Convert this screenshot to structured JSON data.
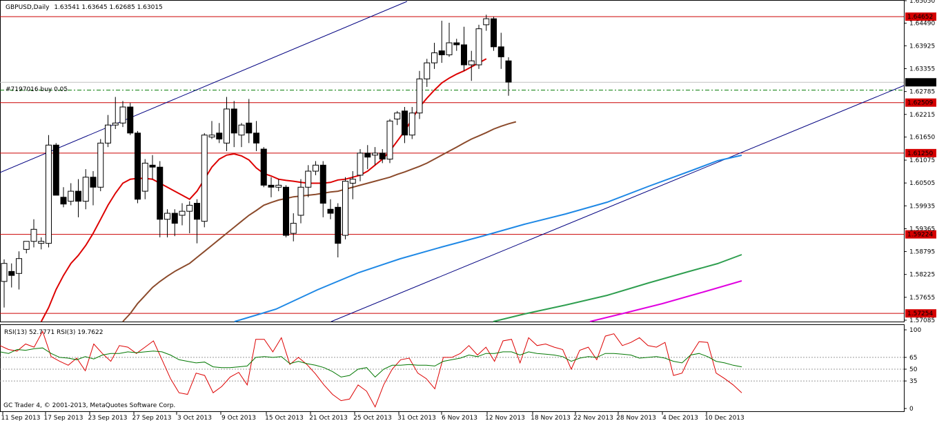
{
  "header": {
    "symbol": "GBPUSD,Daily",
    "ohlc": "1.63541 1.63645 1.62685 1.63015"
  },
  "order_label": "#7197016 buy 0.05",
  "footer": {
    "copyright": "GC Trader 4, © 2001-2013, MetaQuotes Software Corp."
  },
  "colors": {
    "bg": "#ffffff",
    "candle": "#000000",
    "ma_red": "#dd0000",
    "ma_brown": "#8b4a2b",
    "ma_blue": "#1e88e5",
    "ma_green": "#2e9e4f",
    "ma_magenta": "#e000e0",
    "hline": "#cc0000",
    "trend": "#000080",
    "rsi_fast": "#dd0000",
    "rsi_slow": "#007700"
  },
  "chart_data": [
    {
      "type": "candlestick",
      "title": "GBPUSD,Daily",
      "ylim": [
        1.5705,
        1.6505
      ],
      "price_ticks": [
        "1.65050",
        "1.64490",
        "1.63925",
        "1.63355",
        "1.62785",
        "1.62215",
        "1.61650",
        "1.61075",
        "1.60505",
        "1.59935",
        "1.59365",
        "1.58795",
        "1.58225",
        "1.57655",
        "1.57085"
      ],
      "x_labels": [
        "11 Sep 2013",
        "17 Sep 2013",
        "23 Sep 2013",
        "27 Sep 2013",
        "3 Oct 2013",
        "9 Oct 2013",
        "15 Oct 2013",
        "21 Oct 2013",
        "25 Oct 2013",
        "31 Oct 2013",
        "6 Nov 2013",
        "12 Nov 2013",
        "18 Nov 2013",
        "22 Nov 2013",
        "28 Nov 2013",
        "4 Dec 2013",
        "10 Dec 2013"
      ],
      "horizontal_levels": [
        {
          "label": "1.64652",
          "value": 1.64652
        },
        {
          "label": "1.62509",
          "value": 1.62509
        },
        {
          "label": "1.61250",
          "value": 1.6125
        },
        {
          "label": "1.59224",
          "value": 1.59224
        },
        {
          "label": "1.57254",
          "value": 1.57254
        }
      ],
      "current_price": {
        "label": "1.63015",
        "value": 1.63015
      },
      "order_level": {
        "value": 1.6282,
        "label": "#7197016 buy 0.05"
      },
      "candles": [
        {
          "o": 1.5805,
          "h": 1.586,
          "l": 1.574,
          "c": 1.585
        },
        {
          "o": 1.583,
          "h": 1.585,
          "l": 1.579,
          "c": 1.582
        },
        {
          "o": 1.5825,
          "h": 1.588,
          "l": 1.5785,
          "c": 1.5862
        },
        {
          "o": 1.5885,
          "h": 1.5905,
          "l": 1.5875,
          "c": 1.5905
        },
        {
          "o": 1.5905,
          "h": 1.596,
          "l": 1.589,
          "c": 1.5935
        },
        {
          "o": 1.59,
          "h": 1.5915,
          "l": 1.5885,
          "c": 1.5905
        },
        {
          "o": 1.59,
          "h": 1.617,
          "l": 1.589,
          "c": 1.6145
        },
        {
          "o": 1.6145,
          "h": 1.615,
          "l": 1.602,
          "c": 1.602
        },
        {
          "o": 1.6015,
          "h": 1.604,
          "l": 1.599,
          "c": 1.5998
        },
        {
          "o": 1.6005,
          "h": 1.605,
          "l": 1.5995,
          "c": 1.603
        },
        {
          "o": 1.603,
          "h": 1.606,
          "l": 1.5965,
          "c": 1.6005
        },
        {
          "o": 1.6005,
          "h": 1.6085,
          "l": 1.5985,
          "c": 1.6065
        },
        {
          "o": 1.6065,
          "h": 1.608,
          "l": 1.5995,
          "c": 1.604
        },
        {
          "o": 1.604,
          "h": 1.616,
          "l": 1.603,
          "c": 1.615
        },
        {
          "o": 1.615,
          "h": 1.622,
          "l": 1.614,
          "c": 1.6195
        },
        {
          "o": 1.6195,
          "h": 1.6265,
          "l": 1.6185,
          "c": 1.62
        },
        {
          "o": 1.62,
          "h": 1.6255,
          "l": 1.619,
          "c": 1.624
        },
        {
          "o": 1.624,
          "h": 1.625,
          "l": 1.617,
          "c": 1.6175
        },
        {
          "o": 1.6175,
          "h": 1.618,
          "l": 1.6,
          "c": 1.601
        },
        {
          "o": 1.603,
          "h": 1.611,
          "l": 1.601,
          "c": 1.61
        },
        {
          "o": 1.6095,
          "h": 1.612,
          "l": 1.606,
          "c": 1.609
        },
        {
          "o": 1.609,
          "h": 1.6105,
          "l": 1.5915,
          "c": 1.596
        },
        {
          "o": 1.596,
          "h": 1.5985,
          "l": 1.5915,
          "c": 1.5975
        },
        {
          "o": 1.5975,
          "h": 1.5985,
          "l": 1.5918,
          "c": 1.595
        },
        {
          "o": 1.597,
          "h": 1.6,
          "l": 1.5945,
          "c": 1.598
        },
        {
          "o": 1.598,
          "h": 1.6005,
          "l": 1.5925,
          "c": 1.5995
        },
        {
          "o": 1.6,
          "h": 1.601,
          "l": 1.59,
          "c": 1.596
        },
        {
          "o": 1.5955,
          "h": 1.6175,
          "l": 1.594,
          "c": 1.617
        },
        {
          "o": 1.6165,
          "h": 1.6205,
          "l": 1.616,
          "c": 1.617
        },
        {
          "o": 1.6175,
          "h": 1.62,
          "l": 1.615,
          "c": 1.616
        },
        {
          "o": 1.615,
          "h": 1.6265,
          "l": 1.613,
          "c": 1.6235
        },
        {
          "o": 1.6235,
          "h": 1.6255,
          "l": 1.614,
          "c": 1.6175
        },
        {
          "o": 1.617,
          "h": 1.62,
          "l": 1.614,
          "c": 1.6195
        },
        {
          "o": 1.62,
          "h": 1.626,
          "l": 1.615,
          "c": 1.6175
        },
        {
          "o": 1.6175,
          "h": 1.6205,
          "l": 1.613,
          "c": 1.615
        },
        {
          "o": 1.6135,
          "h": 1.614,
          "l": 1.604,
          "c": 1.6045
        },
        {
          "o": 1.6045,
          "h": 1.6065,
          "l": 1.6015,
          "c": 1.604
        },
        {
          "o": 1.604,
          "h": 1.606,
          "l": 1.603,
          "c": 1.6045
        },
        {
          "o": 1.604,
          "h": 1.6045,
          "l": 1.5915,
          "c": 1.592
        },
        {
          "o": 1.5925,
          "h": 1.5975,
          "l": 1.5905,
          "c": 1.595
        },
        {
          "o": 1.597,
          "h": 1.606,
          "l": 1.595,
          "c": 1.604
        },
        {
          "o": 1.604,
          "h": 1.6095,
          "l": 1.6015,
          "c": 1.608
        },
        {
          "o": 1.608,
          "h": 1.6105,
          "l": 1.607,
          "c": 1.6095
        },
        {
          "o": 1.6095,
          "h": 1.6105,
          "l": 1.5965,
          "c": 1.6
        },
        {
          "o": 1.5985,
          "h": 1.601,
          "l": 1.596,
          "c": 1.5975
        },
        {
          "o": 1.599,
          "h": 1.6,
          "l": 1.5865,
          "c": 1.59
        },
        {
          "o": 1.592,
          "h": 1.6065,
          "l": 1.591,
          "c": 1.6055
        },
        {
          "o": 1.605,
          "h": 1.608,
          "l": 1.601,
          "c": 1.606
        },
        {
          "o": 1.607,
          "h": 1.6135,
          "l": 1.6055,
          "c": 1.6125
        },
        {
          "o": 1.6125,
          "h": 1.6145,
          "l": 1.6085,
          "c": 1.6115
        },
        {
          "o": 1.612,
          "h": 1.614,
          "l": 1.6095,
          "c": 1.6125
        },
        {
          "o": 1.6125,
          "h": 1.6135,
          "l": 1.61,
          "c": 1.611
        },
        {
          "o": 1.611,
          "h": 1.621,
          "l": 1.61,
          "c": 1.6205
        },
        {
          "o": 1.621,
          "h": 1.623,
          "l": 1.6195,
          "c": 1.6225
        },
        {
          "o": 1.623,
          "h": 1.624,
          "l": 1.615,
          "c": 1.617
        },
        {
          "o": 1.617,
          "h": 1.624,
          "l": 1.616,
          "c": 1.6225
        },
        {
          "o": 1.6225,
          "h": 1.633,
          "l": 1.621,
          "c": 1.631
        },
        {
          "o": 1.631,
          "h": 1.636,
          "l": 1.629,
          "c": 1.635
        },
        {
          "o": 1.635,
          "h": 1.64,
          "l": 1.6335,
          "c": 1.6375
        },
        {
          "o": 1.638,
          "h": 1.6455,
          "l": 1.635,
          "c": 1.637
        },
        {
          "o": 1.637,
          "h": 1.645,
          "l": 1.6365,
          "c": 1.64
        },
        {
          "o": 1.64,
          "h": 1.641,
          "l": 1.638,
          "c": 1.6395
        },
        {
          "o": 1.6395,
          "h": 1.644,
          "l": 1.633,
          "c": 1.6345
        },
        {
          "o": 1.6345,
          "h": 1.638,
          "l": 1.6305,
          "c": 1.6355
        },
        {
          "o": 1.6345,
          "h": 1.6445,
          "l": 1.6335,
          "c": 1.6435
        },
        {
          "o": 1.6445,
          "h": 1.647,
          "l": 1.643,
          "c": 1.646
        },
        {
          "o": 1.646,
          "h": 1.6465,
          "l": 1.638,
          "c": 1.639
        },
        {
          "o": 1.639,
          "h": 1.6425,
          "l": 1.6335,
          "c": 1.6365
        },
        {
          "o": 1.6355,
          "h": 1.6364,
          "l": 1.6268,
          "c": 1.6302
        }
      ],
      "moving_averages": [
        {
          "color": "#dd0000",
          "values": [
            1.5705,
            1.574,
            1.5785,
            1.582,
            1.585,
            1.587,
            1.5895,
            1.5925,
            1.596,
            1.5995,
            1.6025,
            1.605,
            1.606,
            1.6062,
            1.6062,
            1.606,
            1.605,
            1.604,
            1.603,
            1.602,
            1.601,
            1.603,
            1.606,
            1.609,
            1.611,
            1.612,
            1.6123,
            1.6118,
            1.6108,
            1.6088,
            1.6074,
            1.6068,
            1.606,
            1.6057,
            1.6055,
            1.6052,
            1.605,
            1.605,
            1.605,
            1.6052,
            1.6058,
            1.606,
            1.6065,
            1.607,
            1.608,
            1.6095,
            1.611,
            1.613,
            1.6155,
            1.618,
            1.621,
            1.624,
            1.6262,
            1.6282,
            1.63,
            1.6312,
            1.6322,
            1.633,
            1.634,
            1.635,
            1.636
          ]
        },
        {
          "color": "#8b4a2b",
          "values": [
            1.5705,
            1.5725,
            1.575,
            1.577,
            1.579,
            1.5805,
            1.5818,
            1.583,
            1.584,
            1.585,
            1.5865,
            1.588,
            1.5895,
            1.591,
            1.5925,
            1.594,
            1.5955,
            1.597,
            1.5982,
            1.5995,
            1.6002,
            1.6008,
            1.6012,
            1.6016,
            1.6018,
            1.602,
            1.6022,
            1.6025,
            1.6028,
            1.603,
            1.6035,
            1.604,
            1.6045,
            1.605,
            1.6055,
            1.606,
            1.6065,
            1.6072,
            1.6078,
            1.6085,
            1.6092,
            1.61,
            1.611,
            1.612,
            1.613,
            1.614,
            1.615,
            1.616,
            1.6168,
            1.6176,
            1.6185,
            1.6192,
            1.6198,
            1.6203
          ]
        }
      ],
      "xlabel": "",
      "ylabel": ""
    },
    {
      "type": "line",
      "title": "RSI(13) 52.7771  RSI(3) 19.7622",
      "ylim": [
        0,
        100
      ],
      "y_ticks": [
        "100",
        "65",
        "50",
        "35",
        "0"
      ],
      "series": [
        {
          "name": "RSI(3)",
          "color": "#dd0000",
          "values": [
            80,
            75,
            73,
            82,
            78,
            98,
            66,
            60,
            55,
            64,
            48,
            82,
            70,
            60,
            80,
            78,
            70,
            78,
            86,
            62,
            38,
            20,
            18,
            45,
            42,
            20,
            28,
            40,
            46,
            30,
            88,
            88,
            72,
            90,
            56,
            65,
            56,
            44,
            30,
            18,
            10,
            12,
            30,
            22,
            2,
            30,
            50,
            62,
            64,
            45,
            38,
            25,
            65,
            65,
            70,
            80,
            68,
            78,
            60,
            86,
            88,
            58,
            90,
            80,
            82,
            78,
            75,
            50,
            74,
            78,
            62,
            92,
            95,
            80,
            84,
            90,
            80,
            78,
            84,
            42,
            45,
            68,
            85,
            84,
            45,
            38,
            30,
            20
          ]
        },
        {
          "name": "RSI(13)",
          "color": "#007700",
          "values": [
            72,
            70,
            75,
            74,
            76,
            77,
            70,
            65,
            64,
            62,
            66,
            63,
            68,
            70,
            70,
            72,
            71,
            72,
            73,
            72,
            68,
            62,
            60,
            58,
            59,
            53,
            52,
            52,
            53,
            54,
            65,
            66,
            65,
            66,
            57,
            60,
            57,
            55,
            52,
            47,
            40,
            42,
            50,
            52,
            40,
            50,
            55,
            55,
            56,
            55,
            55,
            54,
            60,
            62,
            64,
            68,
            66,
            70,
            70,
            72,
            72,
            68,
            72,
            70,
            69,
            68,
            66,
            60,
            64,
            66,
            65,
            70,
            70,
            69,
            68,
            64,
            65,
            66,
            64,
            60,
            58,
            68,
            70,
            66,
            60,
            58,
            55,
            53
          ]
        }
      ]
    }
  ]
}
